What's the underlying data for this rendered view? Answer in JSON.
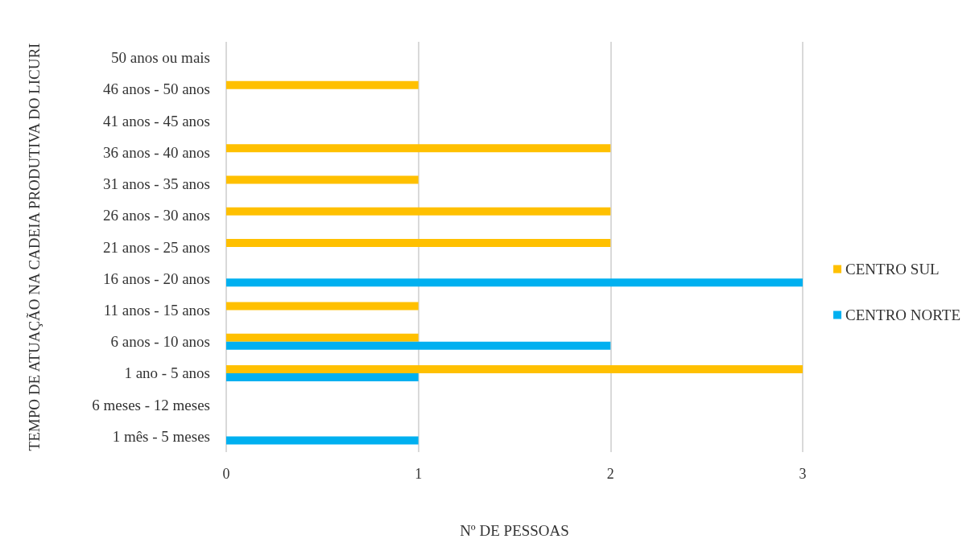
{
  "chart_data": {
    "type": "bar",
    "orientation": "horizontal",
    "xlabel": "Nº DE PESSOAS",
    "ylabel": "TEMPO DE ATUAÇÃO NA CADEIA PRODUTIVA DO LICURI",
    "categories": [
      "50 anos ou mais",
      "46 anos - 50 anos",
      "41 anos - 45 anos",
      "36 anos - 40 anos",
      "31 anos - 35 anos",
      "26 anos - 30 anos",
      "21 anos - 25 anos",
      "16 anos - 20 anos",
      "11 anos - 15 anos",
      "6 anos - 10 anos",
      "1 ano - 5 anos",
      "6 meses - 12 meses",
      "1 mês - 5 meses"
    ],
    "series": [
      {
        "name": "CENTRO SUL",
        "color": "#ffc000",
        "values": [
          null,
          1,
          null,
          2,
          1,
          2,
          2,
          null,
          1,
          1,
          3,
          null,
          null
        ]
      },
      {
        "name": "CENTRO NORTE",
        "color": "#00b0f0",
        "values": [
          null,
          null,
          null,
          null,
          null,
          null,
          null,
          3,
          null,
          2,
          1,
          null,
          1
        ]
      }
    ],
    "xlim": [
      0,
      3
    ],
    "xticks": [
      0,
      1,
      2,
      3
    ],
    "grid": "x",
    "legend": "right"
  }
}
